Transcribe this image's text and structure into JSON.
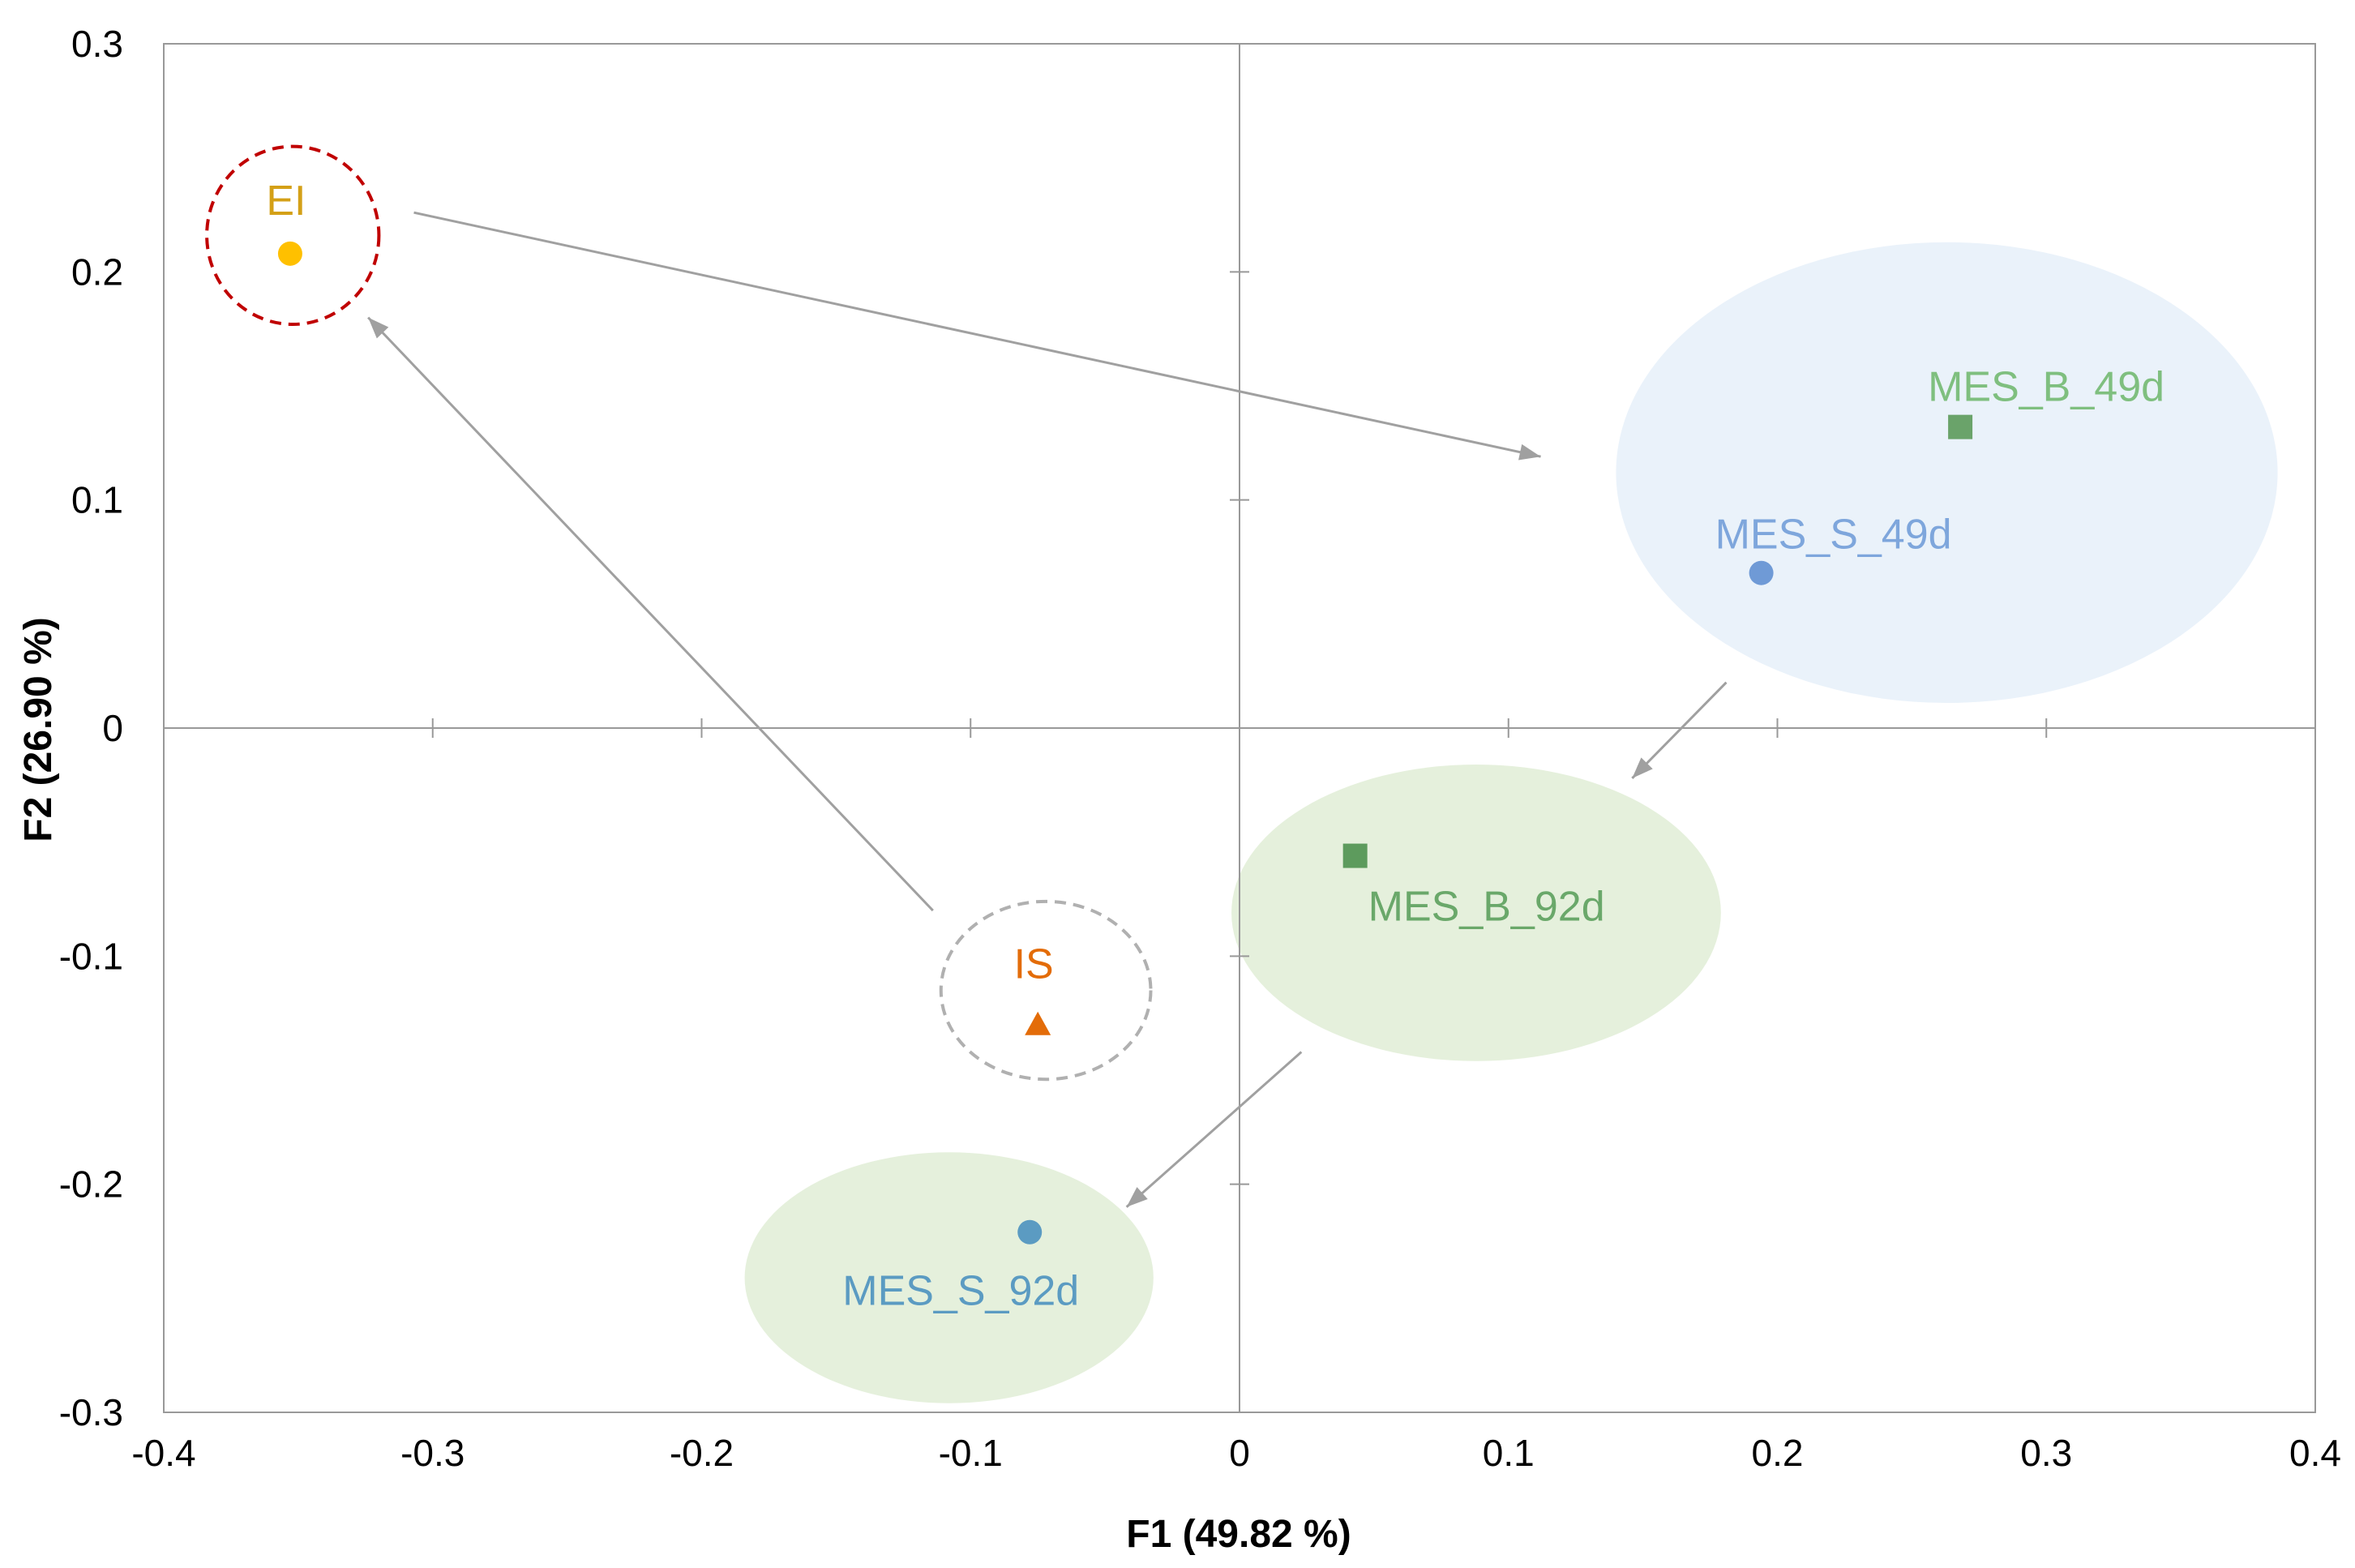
{
  "chart_data": {
    "type": "scatter",
    "title": "",
    "xlabel": "F1 (49.82 %)",
    "ylabel": "F2 (26.90 %)",
    "xlim": [
      -0.4,
      0.4
    ],
    "ylim": [
      -0.3,
      0.3
    ],
    "x_ticks": [
      -0.4,
      -0.3,
      -0.2,
      -0.1,
      0,
      0.1,
      0.2,
      0.3,
      0.4
    ],
    "y_ticks": [
      -0.3,
      -0.2,
      -0.1,
      0,
      0.1,
      0.2,
      0.3
    ],
    "x_tick_labels": [
      "-0.4",
      "-0.3",
      "-0.2",
      "-0.1",
      "0",
      "0.1",
      "0.2",
      "0.3",
      "0.4"
    ],
    "y_tick_labels": [
      "-0.3",
      "-0.2",
      "-0.1",
      "0",
      "0.1",
      "0.2",
      "0.3"
    ],
    "grid": false,
    "legend": "none",
    "points": [
      {
        "label": "EI",
        "x": -0.353,
        "y": 0.208,
        "marker": "circle",
        "color": "#ffc000",
        "label_color": "#d4a017"
      },
      {
        "label": "IS",
        "x": -0.075,
        "y": -0.13,
        "marker": "triangle",
        "color": "#e36c09",
        "label_color": "#e36c09"
      },
      {
        "label": "MES_B_49d",
        "x": 0.268,
        "y": 0.132,
        "marker": "square",
        "color": "#6aa36a",
        "label_color": "#7fbf7f"
      },
      {
        "label": "MES_S_49d",
        "x": 0.194,
        "y": 0.068,
        "marker": "circle",
        "color": "#6f9ad6",
        "label_color": "#7ea6dc"
      },
      {
        "label": "MES_B_92d",
        "x": 0.043,
        "y": -0.056,
        "marker": "square",
        "color": "#5d9b5d",
        "label_color": "#6aa86a"
      },
      {
        "label": "MES_S_92d",
        "x": -0.078,
        "y": -0.221,
        "marker": "circle",
        "color": "#5b9bc2",
        "label_color": "#5b9bc2"
      }
    ],
    "groups": [
      {
        "center": [
          -0.352,
          0.216
        ],
        "rx": 0.032,
        "ry": 0.039,
        "style": "dashed",
        "color": "#c00000"
      },
      {
        "center": [
          -0.072,
          -0.115
        ],
        "rx": 0.039,
        "ry": 0.039,
        "style": "dashed",
        "color": "#b0b0b0"
      },
      {
        "center": [
          0.263,
          0.112
        ],
        "rx": 0.123,
        "ry": 0.101,
        "style": "filled",
        "color": "#eaf2fa"
      },
      {
        "center": [
          0.088,
          -0.081
        ],
        "rx": 0.091,
        "ry": 0.065,
        "style": "filled",
        "color": "#e5f0dc"
      },
      {
        "center": [
          -0.108,
          -0.241
        ],
        "rx": 0.076,
        "ry": 0.055,
        "style": "filled",
        "color": "#e5f0dc"
      }
    ],
    "arrows": [
      {
        "from": [
          -0.307,
          0.226
        ],
        "to": [
          0.112,
          0.119
        ]
      },
      {
        "from": [
          -0.114,
          -0.08
        ],
        "to": [
          -0.324,
          0.18
        ]
      },
      {
        "from": [
          0.181,
          0.02
        ],
        "to": [
          0.146,
          -0.022
        ]
      },
      {
        "from": [
          0.023,
          -0.142
        ],
        "to": [
          -0.042,
          -0.21
        ]
      }
    ],
    "colors": {
      "axis": "#999999",
      "frame": "#999999",
      "arrow": "#a0a0a0"
    }
  }
}
